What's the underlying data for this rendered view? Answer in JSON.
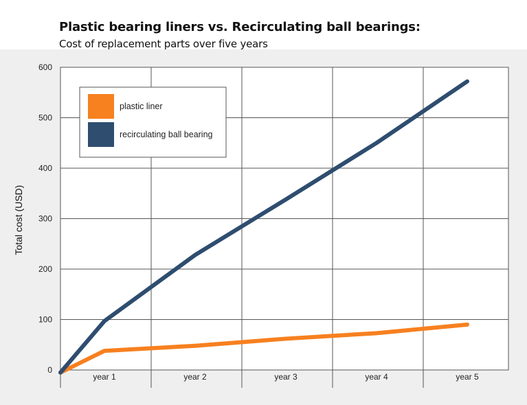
{
  "chart_data": {
    "type": "line",
    "title": "Plastic bearing liners vs. Recirculating ball bearings:",
    "subtitle": "Cost of replacement parts over five years",
    "xlabel": "",
    "ylabel": "Total cost (USD)",
    "categories": [
      "",
      "year 1",
      "year 2",
      "year 3",
      "year 4",
      "year 5"
    ],
    "yticks": [
      0,
      100,
      200,
      300,
      400,
      500,
      600
    ],
    "ylim": [
      0,
      600
    ],
    "grid": true,
    "legend_position": "top-left",
    "series": [
      {
        "name": "plastic liner",
        "color": "#f7801f",
        "values": [
          -5,
          38,
          48,
          62,
          73,
          90
        ]
      },
      {
        "name": "recirculating ball bearing",
        "color": "#2e4d6f",
        "values": [
          -5,
          97,
          228,
          338,
          450,
          572
        ]
      }
    ]
  }
}
